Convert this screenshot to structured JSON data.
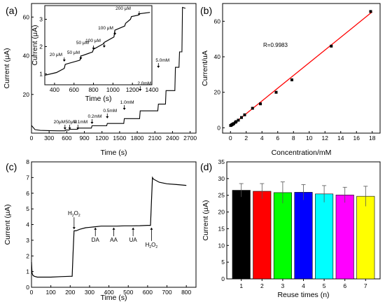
{
  "chart_data": [
    {
      "panel": "(a)",
      "type": "line",
      "xlabel": "Time (s)",
      "ylabel": "Current (μA)",
      "xlim": [
        0,
        2800
      ],
      "ylim": [
        0,
        67
      ],
      "xticks": [
        0,
        300,
        600,
        900,
        1200,
        1500,
        1800,
        2100,
        2400,
        2700
      ],
      "yticks": [
        20,
        40,
        60
      ],
      "series": [
        {
          "x": [
            0,
            60,
            150,
            300,
            450,
            570,
            580,
            640,
            650,
            780,
            790,
            1020,
            1030,
            1280,
            1290,
            1570,
            1580,
            1840,
            1850,
            2150,
            2160,
            2280,
            2290,
            2440,
            2450,
            2510,
            2520,
            2560,
            2570,
            2620
          ],
          "y": [
            4,
            1.8,
            1.4,
            1.3,
            1.2,
            1.2,
            1.6,
            1.6,
            2.0,
            2.0,
            2.6,
            2.6,
            3.8,
            3.8,
            5.0,
            5.0,
            7.5,
            7.5,
            11.5,
            11.5,
            15.0,
            15.0,
            22.0,
            22.0,
            34.0,
            34.0,
            42.0,
            42.0,
            65.0,
            64.5
          ]
        }
      ],
      "annotations": [
        {
          "text": "20μM",
          "x": 570
        },
        {
          "text": "50μM",
          "x": 650
        },
        {
          "text": "0.1mM",
          "x": 790
        },
        {
          "text": "0.2mM",
          "x": 1030
        },
        {
          "text": "0.5mM",
          "x": 1290
        },
        {
          "text": "1.0mM",
          "x": 1580
        },
        {
          "text": "2.0mM",
          "x": 1850
        },
        {
          "text": "5.0mM",
          "x": 2160
        }
      ],
      "inset": {
        "xlabel": "Time (s)",
        "ylabel": "Current (μA)",
        "xlim": [
          300,
          1400
        ],
        "ylim": [
          0.6,
          3.5
        ],
        "xticks": [
          400,
          600,
          800,
          1000,
          1200,
          1400
        ],
        "yticks": [
          1,
          2,
          3
        ],
        "x": [
          300,
          420,
          500,
          510,
          660,
          670,
          790,
          800,
          900,
          910,
          1010,
          1020,
          1120,
          1130,
          1180,
          1190,
          1260,
          1270,
          1380
        ],
        "y": [
          0.95,
          1.05,
          1.2,
          1.35,
          1.5,
          1.65,
          1.8,
          1.9,
          2.1,
          2.15,
          2.35,
          2.6,
          2.75,
          2.85,
          3.0,
          3.1,
          3.15,
          3.2,
          3.25
        ],
        "annotations": [
          {
            "text": "20 μM",
            "x": 500
          },
          {
            "text": "50 μM",
            "x": 670
          },
          {
            "text": "50 μM",
            "x": 800
          },
          {
            "text": "100 μM",
            "x": 910
          },
          {
            "text": "100 μM",
            "x": 1020
          },
          {
            "text": "200 μM",
            "x": 1270
          }
        ]
      }
    },
    {
      "panel": "(b)",
      "type": "scatter",
      "xlabel": "Concentration/mM",
      "ylabel": "Current/uA",
      "xlim": [
        -1,
        19
      ],
      "ylim": [
        -3,
        70
      ],
      "xticks": [
        0,
        2,
        4,
        6,
        8,
        10,
        12,
        14,
        16,
        18
      ],
      "yticks": [
        0,
        20,
        40,
        60
      ],
      "annotation": "R=0.9983",
      "fit": {
        "x": [
          0,
          18
        ],
        "y": [
          0.8,
          65.3
        ]
      },
      "x": [
        0.02,
        0.07,
        0.17,
        0.22,
        0.32,
        0.42,
        0.62,
        0.72,
        1.0,
        1.4,
        1.8,
        2.8,
        3.8,
        5.8,
        7.8,
        12.8,
        17.8
      ],
      "y": [
        1.3,
        1.4,
        1.7,
        1.9,
        2.1,
        2.4,
        3.1,
        3.5,
        4.3,
        5.8,
        7.3,
        11.0,
        13.5,
        20.0,
        27.0,
        46.0,
        65.5
      ]
    },
    {
      "panel": "(c)",
      "type": "line",
      "xlabel": "Time (s)",
      "ylabel": "Current (μA)",
      "xlim": [
        0,
        850
      ],
      "ylim": [
        0,
        8
      ],
      "xticks": [
        0,
        100,
        200,
        300,
        400,
        500,
        600,
        700,
        800
      ],
      "yticks": [
        0,
        1,
        2,
        3,
        4,
        5,
        6,
        7,
        8
      ],
      "x": [
        0,
        3,
        8,
        15,
        30,
        60,
        100,
        150,
        200,
        210,
        215,
        220,
        230,
        250,
        280,
        320,
        360,
        400,
        440,
        480,
        520,
        560,
        600,
        615,
        620,
        625,
        630,
        660,
        700,
        750,
        800
      ],
      "y": [
        1.6,
        0.9,
        0.75,
        0.7,
        0.65,
        0.65,
        0.65,
        0.68,
        0.7,
        0.7,
        2.2,
        3.6,
        3.6,
        3.7,
        3.8,
        3.85,
        3.9,
        3.9,
        3.9,
        3.92,
        3.92,
        3.93,
        3.95,
        3.95,
        5.5,
        7.0,
        6.9,
        6.7,
        6.6,
        6.55,
        6.5
      ],
      "annotations": [
        {
          "text": "H",
          "sub": "2",
          "text2": "O",
          "sub2": "2",
          "x": 220,
          "y_label": 4.6
        },
        {
          "text": "DA",
          "x": 330,
          "y_label": 2.9
        },
        {
          "text": "AA",
          "x": 425,
          "y_label": 2.9
        },
        {
          "text": "UA",
          "x": 525,
          "y_label": 2.9
        },
        {
          "text": "H",
          "sub": "2",
          "text2": "O",
          "sub2": "2",
          "x": 620,
          "y_label": 2.6
        }
      ]
    },
    {
      "panel": "(d)",
      "type": "bar",
      "xlabel": "Reuse times (n)",
      "ylabel": "Current (μA)",
      "ylim": [
        0,
        35
      ],
      "yticks": [
        0,
        5,
        10,
        15,
        20,
        25,
        30,
        35
      ],
      "categories": [
        "1",
        "2",
        "3",
        "4",
        "5",
        "6",
        "7"
      ],
      "values": [
        26.5,
        26.2,
        25.8,
        25.9,
        25.4,
        25.1,
        24.7
      ],
      "errors": [
        2.0,
        2.3,
        3.2,
        2.3,
        2.5,
        2.3,
        3.0
      ],
      "colors": [
        "#000000",
        "#ff0000",
        "#00ff00",
        "#0000ff",
        "#00ffff",
        "#ff00ff",
        "#ffff00"
      ]
    }
  ]
}
